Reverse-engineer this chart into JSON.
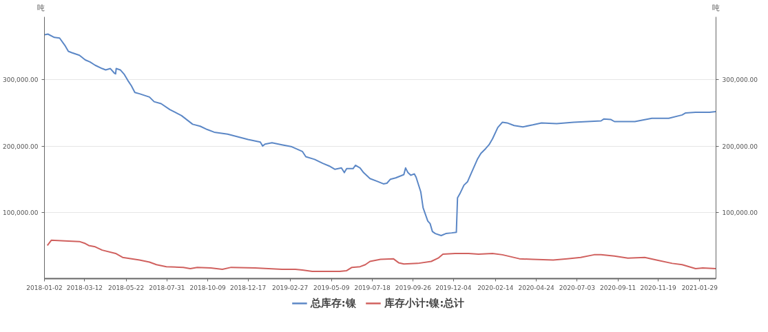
{
  "chart_data": {
    "type": "line",
    "ylabel": "吨",
    "y2label": "吨",
    "xlim": [
      "2018-01-02",
      "2021-02-26"
    ],
    "xticks": [
      "2018-01-02",
      "2018-03-12",
      "2018-05-22",
      "2018-07-31",
      "2018-10-09",
      "2018-12-17",
      "2019-02-27",
      "2019-05-09",
      "2019-07-18",
      "2019-09-26",
      "2019-12-04",
      "2020-02-14",
      "2020-04-24",
      "2020-07-03",
      "2020-09-11",
      "2020-11-19",
      "2021-01-29"
    ],
    "ylim": [
      0,
      395000
    ],
    "yticks": [
      {
        "value": 100000,
        "label": "100,000.00"
      },
      {
        "value": 200000,
        "label": "200,000.00"
      },
      {
        "value": 300000,
        "label": "300,000.00"
      }
    ],
    "y2lim": [
      0,
      395000
    ],
    "y2ticks": [
      {
        "value": 100000,
        "label": "100,000.00"
      },
      {
        "value": 200000,
        "label": "200,000.00"
      },
      {
        "value": 300000,
        "label": "300,000.00"
      }
    ],
    "grid": "y",
    "legend": "bottom",
    "marker": "none",
    "line_style": "solid",
    "series": [
      {
        "name": "总库存:镍",
        "color": "#5b87c6",
        "x": [
          "2018-01-02",
          "2018-01-08",
          "2018-01-19",
          "2018-01-28",
          "2018-02-06",
          "2018-02-12",
          "2018-02-18",
          "2018-03-03",
          "2018-03-13",
          "2018-03-21",
          "2018-03-30",
          "2018-04-11",
          "2018-04-17",
          "2018-04-25",
          "2018-05-02",
          "2018-05-04",
          "2018-05-05",
          "2018-05-12",
          "2018-05-19",
          "2018-05-25",
          "2018-05-31",
          "2018-06-06",
          "2018-06-14",
          "2018-07-01",
          "2018-07-09",
          "2018-07-21",
          "2018-08-05",
          "2018-08-25",
          "2018-09-13",
          "2018-09-26",
          "2018-10-08",
          "2018-10-20",
          "2018-11-12",
          "2018-12-17",
          "2019-01-07",
          "2019-01-11",
          "2019-01-15",
          "2019-01-27",
          "2019-02-13",
          "2019-03-02",
          "2019-03-20",
          "2019-03-26",
          "2019-04-10",
          "2019-04-24",
          "2019-05-05",
          "2019-05-15",
          "2019-05-26",
          "2019-05-31",
          "2019-06-04",
          "2019-06-15",
          "2019-06-19",
          "2019-06-27",
          "2019-07-03",
          "2019-07-14",
          "2019-07-26",
          "2019-08-06",
          "2019-08-12",
          "2019-08-18",
          "2019-08-27",
          "2019-09-10",
          "2019-09-13",
          "2019-09-17",
          "2019-09-22",
          "2019-09-28",
          "2019-10-01",
          "2019-10-09",
          "2019-10-13",
          "2019-10-21",
          "2019-10-25",
          "2019-10-29",
          "2019-11-03",
          "2019-11-13",
          "2019-11-21",
          "2019-12-01",
          "2019-12-09",
          "2019-12-11",
          "2019-12-15",
          "2019-12-22",
          "2019-12-28",
          "2020-01-05",
          "2020-01-14",
          "2020-01-20",
          "2020-01-28",
          "2020-02-03",
          "2020-02-09",
          "2020-02-18",
          "2020-02-26",
          "2020-03-05",
          "2020-03-17",
          "2020-04-01",
          "2020-04-18",
          "2020-05-03",
          "2020-05-29",
          "2020-06-27",
          "2020-08-13",
          "2020-08-18",
          "2020-08-30",
          "2020-09-05",
          "2020-10-10",
          "2020-11-08",
          "2020-12-07",
          "2020-12-30",
          "2021-01-05",
          "2021-01-22",
          "2021-02-15",
          "2021-02-26"
        ],
        "values": [
          368000,
          369000,
          364000,
          363000,
          352000,
          343000,
          341000,
          337000,
          330000,
          327000,
          322000,
          317000,
          315000,
          317000,
          310000,
          309000,
          317000,
          315000,
          308000,
          299000,
          291000,
          281000,
          279000,
          274000,
          267000,
          264000,
          255000,
          246000,
          233000,
          230000,
          225000,
          221000,
          218000,
          210000,
          206000,
          200000,
          203000,
          205000,
          202000,
          199000,
          192000,
          184000,
          180000,
          174000,
          170000,
          165000,
          167000,
          160000,
          166000,
          166000,
          171000,
          167000,
          160000,
          151000,
          147000,
          143000,
          144000,
          150000,
          152000,
          157000,
          167000,
          160000,
          156000,
          158000,
          153000,
          131000,
          107000,
          87000,
          83000,
          71000,
          68000,
          65000,
          68000,
          69000,
          70000,
          122000,
          128000,
          141000,
          146000,
          162000,
          180000,
          189000,
          196000,
          202000,
          211000,
          228000,
          236000,
          235000,
          231000,
          229000,
          232000,
          235000,
          234000,
          236000,
          238000,
          241000,
          240000,
          237000,
          237000,
          242000,
          242000,
          247000,
          250000,
          251000,
          251000,
          252000
        ]
      },
      {
        "name": "库存小计:镍:总计",
        "color": "#d0605e",
        "x": [
          "2018-01-07",
          "2018-01-14",
          "2018-02-06",
          "2018-03-03",
          "2018-03-13",
          "2018-03-19",
          "2018-03-30",
          "2018-04-11",
          "2018-05-04",
          "2018-05-16",
          "2018-06-14",
          "2018-07-01",
          "2018-07-13",
          "2018-07-30",
          "2018-08-28",
          "2018-09-09",
          "2018-09-21",
          "2018-10-14",
          "2018-11-03",
          "2018-11-18",
          "2018-12-29",
          "2019-01-21",
          "2019-02-13",
          "2019-03-08",
          "2019-03-20",
          "2019-04-06",
          "2019-05-23",
          "2019-06-04",
          "2019-06-13",
          "2019-06-27",
          "2019-07-06",
          "2019-07-14",
          "2019-08-01",
          "2019-08-23",
          "2019-09-01",
          "2019-09-10",
          "2019-10-04",
          "2019-10-27",
          "2019-11-08",
          "2019-11-16",
          "2019-12-07",
          "2019-12-30",
          "2020-01-16",
          "2020-02-09",
          "2020-02-26",
          "2020-03-26",
          "2020-04-18",
          "2020-05-23",
          "2020-06-16",
          "2020-07-09",
          "2020-08-01",
          "2020-08-13",
          "2020-09-05",
          "2020-09-28",
          "2020-10-27",
          "2020-11-16",
          "2020-12-13",
          "2020-12-30",
          "2021-01-22",
          "2021-02-03",
          "2021-02-26"
        ],
        "values": [
          50000,
          58000,
          57000,
          56000,
          53000,
          50000,
          48000,
          43000,
          38000,
          32000,
          28000,
          25000,
          21000,
          18000,
          17000,
          15000,
          17000,
          16000,
          14000,
          17000,
          16000,
          15000,
          14000,
          14000,
          13000,
          11000,
          11000,
          12000,
          17000,
          18000,
          21000,
          26000,
          29000,
          30000,
          24000,
          22000,
          23000,
          26000,
          31000,
          37000,
          38000,
          38000,
          37000,
          38000,
          36000,
          30000,
          29000,
          28000,
          30000,
          32000,
          36000,
          36000,
          34000,
          31000,
          32000,
          28000,
          23000,
          21000,
          15000,
          16000,
          15000
        ]
      }
    ]
  }
}
